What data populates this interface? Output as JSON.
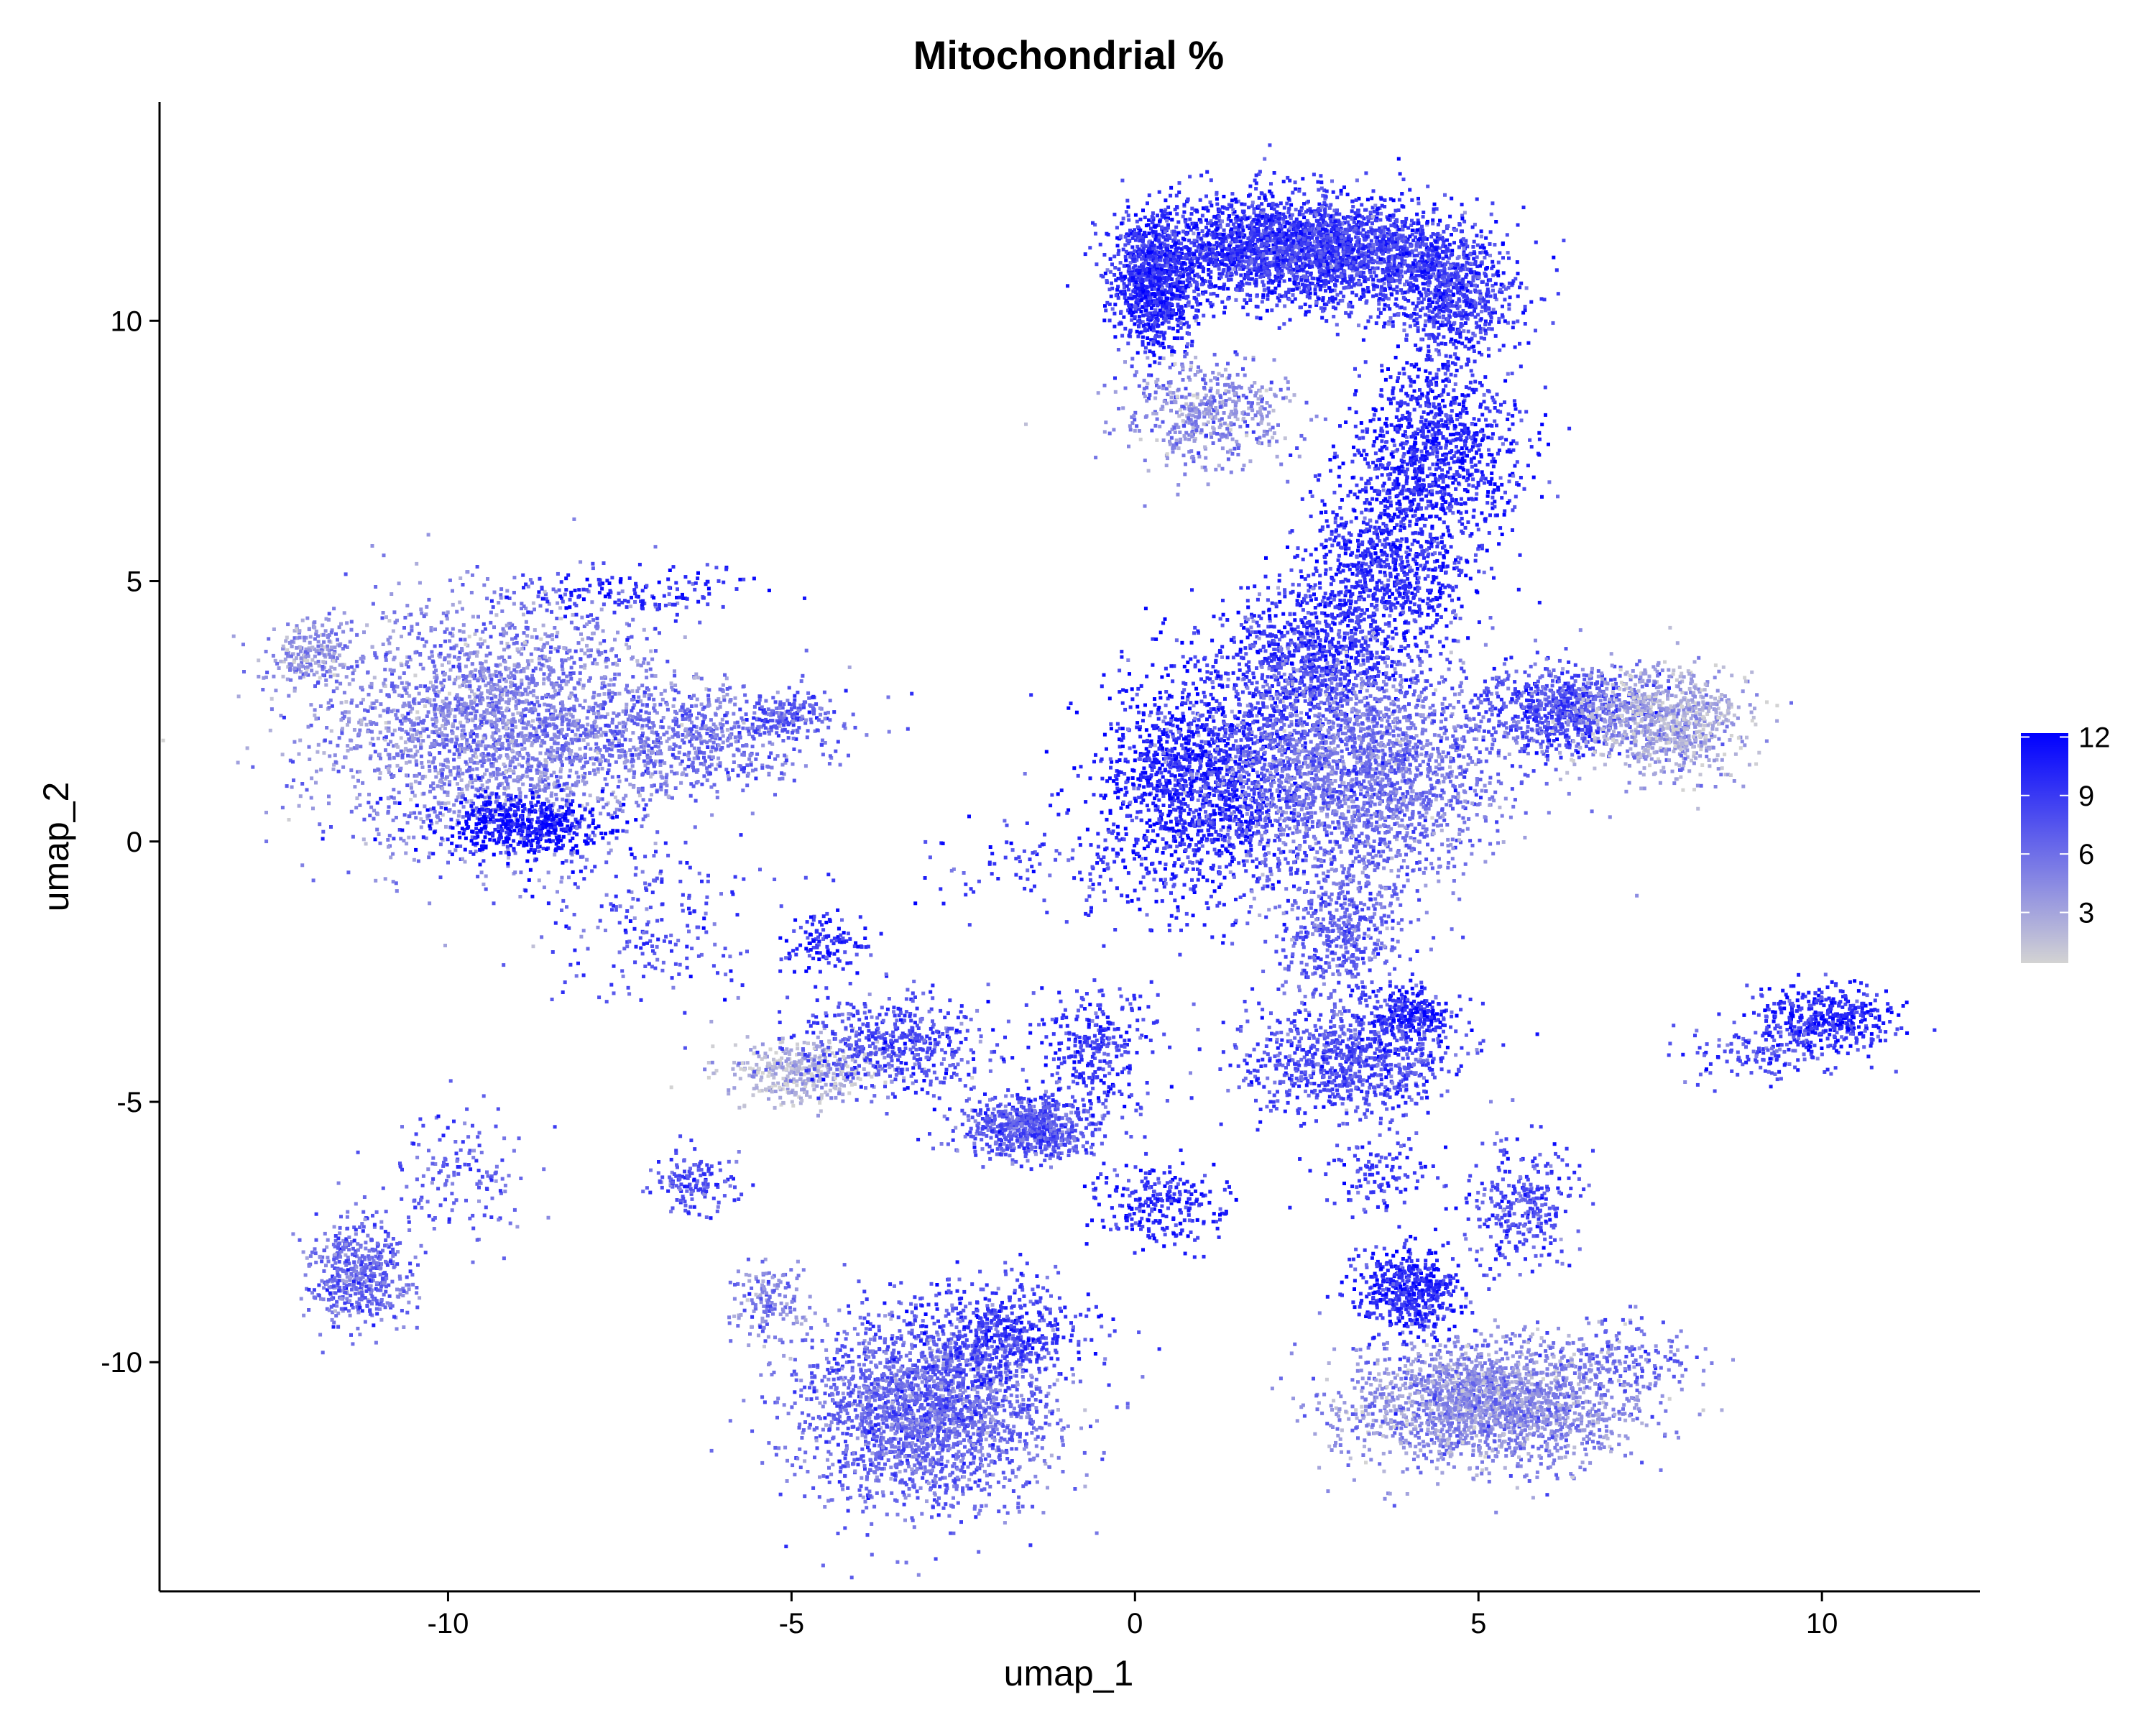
{
  "chart_data": {
    "type": "scatter",
    "title": "Mitochondrial %",
    "xlabel": "umap_1",
    "ylabel": "umap_2",
    "xlim": [
      -14.2,
      12.3
    ],
    "ylim": [
      -14.4,
      14.2
    ],
    "x_ticks": [
      -10,
      -5,
      0,
      5,
      10
    ],
    "x_tick_labels": [
      "-10",
      "-5",
      "0",
      "5",
      "10"
    ],
    "y_ticks": [
      -10,
      -5,
      0,
      5,
      10
    ],
    "y_tick_labels": [
      "-10",
      "-5",
      "0",
      "5",
      "10"
    ],
    "grid": false,
    "legend_position": "right",
    "color_scale": {
      "name": "",
      "min": 0.4,
      "max": 12.2,
      "low_color": "#d3d3d3",
      "high_color": "#0000ff",
      "breaks": [
        3,
        6,
        9,
        12
      ],
      "break_labels": [
        "3",
        "6",
        "9",
        "12"
      ]
    },
    "clusters": [
      {
        "x": 0.3,
        "y": 10.7,
        "sx": 0.3,
        "sy": 0.6,
        "n": 900,
        "v": 10.0
      },
      {
        "x": 1.8,
        "y": 11.4,
        "sx": 0.9,
        "sy": 0.5,
        "n": 1500,
        "v": 9.5
      },
      {
        "x": 3.2,
        "y": 11.3,
        "sx": 0.8,
        "sy": 0.5,
        "n": 1300,
        "v": 9.0
      },
      {
        "x": 4.6,
        "y": 10.5,
        "sx": 0.5,
        "sy": 0.6,
        "n": 700,
        "v": 9.0
      },
      {
        "x": 1.1,
        "y": 8.2,
        "sx": 0.6,
        "sy": 0.5,
        "n": 500,
        "v": 4.5
      },
      {
        "x": 4.4,
        "y": 7.5,
        "sx": 0.6,
        "sy": 0.9,
        "n": 1000,
        "v": 10.0
      },
      {
        "x": 3.6,
        "y": 5.2,
        "sx": 0.6,
        "sy": 0.9,
        "n": 900,
        "v": 10.0
      },
      {
        "x": 2.5,
        "y": 3.6,
        "sx": 0.7,
        "sy": 0.6,
        "n": 700,
        "v": 9.5
      },
      {
        "x": 1.0,
        "y": 1.2,
        "sx": 0.8,
        "sy": 1.0,
        "n": 1500,
        "v": 10.5
      },
      {
        "x": 3.2,
        "y": 1.4,
        "sx": 1.1,
        "sy": 1.1,
        "n": 2500,
        "v": 6.0
      },
      {
        "x": 6.2,
        "y": 2.5,
        "sx": 0.6,
        "sy": 0.4,
        "n": 700,
        "v": 8.0
      },
      {
        "x": 7.7,
        "y": 2.3,
        "sx": 0.6,
        "sy": 0.5,
        "n": 900,
        "v": 3.0
      },
      {
        "x": -9.3,
        "y": 2.2,
        "sx": 1.3,
        "sy": 1.2,
        "n": 2600,
        "v": 5.0
      },
      {
        "x": -8.9,
        "y": 0.3,
        "sx": 0.6,
        "sy": 0.3,
        "n": 500,
        "v": 11.5
      },
      {
        "x": -12.0,
        "y": 3.6,
        "sx": 0.3,
        "sy": 0.3,
        "n": 200,
        "v": 4.0
      },
      {
        "x": -6.5,
        "y": 2.0,
        "sx": 1.0,
        "sy": 0.5,
        "n": 600,
        "v": 6.0
      },
      {
        "x": -7.2,
        "y": 4.8,
        "sx": 0.8,
        "sy": 0.3,
        "n": 150,
        "v": 10.0
      },
      {
        "x": -5.0,
        "y": 2.4,
        "sx": 0.3,
        "sy": 0.2,
        "n": 150,
        "v": 7.0
      },
      {
        "x": -7.0,
        "y": -1.5,
        "sx": 0.8,
        "sy": 0.8,
        "n": 200,
        "v": 8.0
      },
      {
        "x": -4.8,
        "y": -4.4,
        "sx": 0.6,
        "sy": 0.3,
        "n": 400,
        "v": 2.0
      },
      {
        "x": -3.5,
        "y": -3.9,
        "sx": 0.7,
        "sy": 0.5,
        "n": 500,
        "v": 8.0
      },
      {
        "x": -4.5,
        "y": -2.0,
        "sx": 0.3,
        "sy": 0.3,
        "n": 120,
        "v": 10.0
      },
      {
        "x": -1.5,
        "y": -5.5,
        "sx": 0.5,
        "sy": 0.3,
        "n": 700,
        "v": 7.5
      },
      {
        "x": -0.6,
        "y": -4.0,
        "sx": 0.4,
        "sy": 0.6,
        "n": 300,
        "v": 9.0
      },
      {
        "x": 0.4,
        "y": -7.0,
        "sx": 0.5,
        "sy": 0.4,
        "n": 250,
        "v": 10.0
      },
      {
        "x": 3.0,
        "y": -1.8,
        "sx": 0.5,
        "sy": 0.7,
        "n": 500,
        "v": 7.0
      },
      {
        "x": 3.1,
        "y": -4.2,
        "sx": 0.8,
        "sy": 0.5,
        "n": 800,
        "v": 8.0
      },
      {
        "x": 4.0,
        "y": -3.3,
        "sx": 0.3,
        "sy": 0.3,
        "n": 250,
        "v": 10.0
      },
      {
        "x": 10.1,
        "y": -3.4,
        "sx": 0.5,
        "sy": 0.3,
        "n": 400,
        "v": 10.0
      },
      {
        "x": 9.2,
        "y": -4.0,
        "sx": 0.6,
        "sy": 0.3,
        "n": 150,
        "v": 8.0
      },
      {
        "x": -11.3,
        "y": -8.3,
        "sx": 0.4,
        "sy": 0.5,
        "n": 500,
        "v": 6.5
      },
      {
        "x": -9.8,
        "y": -6.4,
        "sx": 0.6,
        "sy": 0.6,
        "n": 150,
        "v": 7.0
      },
      {
        "x": -6.4,
        "y": -6.6,
        "sx": 0.3,
        "sy": 0.3,
        "n": 150,
        "v": 8.0
      },
      {
        "x": -5.3,
        "y": -8.9,
        "sx": 0.3,
        "sy": 0.4,
        "n": 150,
        "v": 5.0
      },
      {
        "x": -3.0,
        "y": -11.0,
        "sx": 0.9,
        "sy": 0.9,
        "n": 2300,
        "v": 6.5
      },
      {
        "x": -2.0,
        "y": -9.4,
        "sx": 0.7,
        "sy": 0.5,
        "n": 500,
        "v": 9.0
      },
      {
        "x": 5.2,
        "y": -10.8,
        "sx": 1.0,
        "sy": 0.6,
        "n": 2100,
        "v": 4.5
      },
      {
        "x": 4.0,
        "y": -8.6,
        "sx": 0.4,
        "sy": 0.4,
        "n": 500,
        "v": 10.0
      },
      {
        "x": 5.6,
        "y": -7.0,
        "sx": 0.4,
        "sy": 0.6,
        "n": 300,
        "v": 8.0
      },
      {
        "x": 7.2,
        "y": -10.0,
        "sx": 0.5,
        "sy": 0.4,
        "n": 150,
        "v": 6.0
      },
      {
        "x": -0.5,
        "y": -0.5,
        "sx": 1.5,
        "sy": 0.5,
        "n": 200,
        "v": 9.0
      },
      {
        "x": 3.6,
        "y": -6.3,
        "sx": 0.4,
        "sy": 0.4,
        "n": 120,
        "v": 9.0
      }
    ]
  }
}
